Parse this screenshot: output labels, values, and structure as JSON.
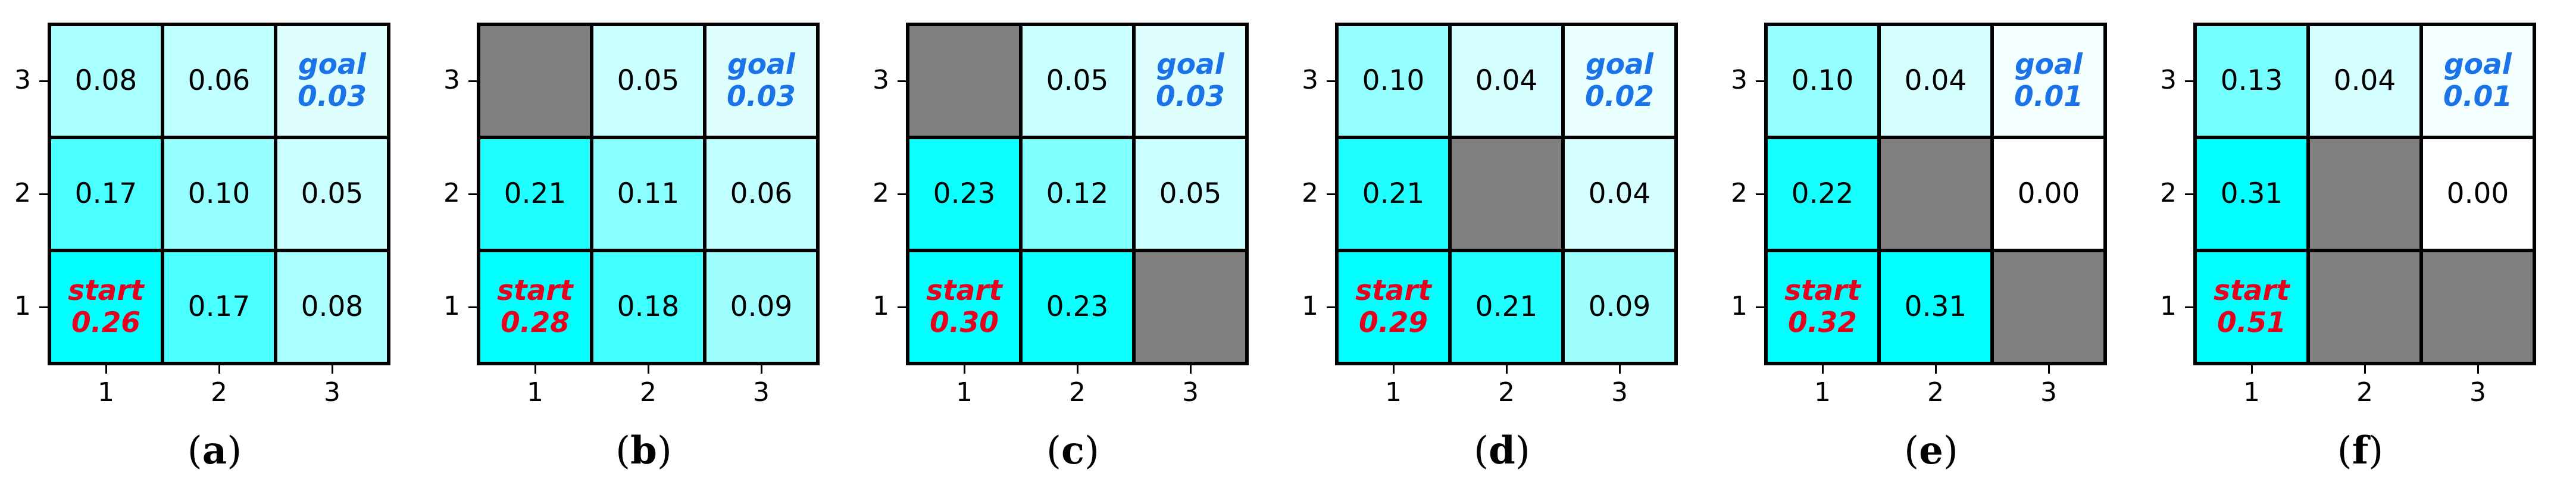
{
  "chart_data": [
    {
      "type": "heatmap",
      "label": "a",
      "x_ticks": [
        "1",
        "2",
        "3"
      ],
      "y_ticks": [
        "1",
        "2",
        "3"
      ],
      "cells": [
        {
          "row": 3,
          "col": 1,
          "value": 0.08,
          "text": "0.08"
        },
        {
          "row": 3,
          "col": 2,
          "value": 0.06,
          "text": "0.06"
        },
        {
          "row": 3,
          "col": 3,
          "value": 0.03,
          "text": "0.03",
          "tag": "goal"
        },
        {
          "row": 2,
          "col": 1,
          "value": 0.17,
          "text": "0.17"
        },
        {
          "row": 2,
          "col": 2,
          "value": 0.1,
          "text": "0.10"
        },
        {
          "row": 2,
          "col": 3,
          "value": 0.05,
          "text": "0.05"
        },
        {
          "row": 1,
          "col": 1,
          "value": 0.26,
          "text": "0.26",
          "tag": "start"
        },
        {
          "row": 1,
          "col": 2,
          "value": 0.17,
          "text": "0.17"
        },
        {
          "row": 1,
          "col": 3,
          "value": 0.08,
          "text": "0.08"
        }
      ]
    },
    {
      "type": "heatmap",
      "label": "b",
      "x_ticks": [
        "1",
        "2",
        "3"
      ],
      "y_ticks": [
        "1",
        "2",
        "3"
      ],
      "cells": [
        {
          "row": 3,
          "col": 1,
          "value": null,
          "blocked": true
        },
        {
          "row": 3,
          "col": 2,
          "value": 0.05,
          "text": "0.05"
        },
        {
          "row": 3,
          "col": 3,
          "value": 0.03,
          "text": "0.03",
          "tag": "goal"
        },
        {
          "row": 2,
          "col": 1,
          "value": 0.21,
          "text": "0.21"
        },
        {
          "row": 2,
          "col": 2,
          "value": 0.11,
          "text": "0.11"
        },
        {
          "row": 2,
          "col": 3,
          "value": 0.06,
          "text": "0.06"
        },
        {
          "row": 1,
          "col": 1,
          "value": 0.28,
          "text": "0.28",
          "tag": "start"
        },
        {
          "row": 1,
          "col": 2,
          "value": 0.18,
          "text": "0.18"
        },
        {
          "row": 1,
          "col": 3,
          "value": 0.09,
          "text": "0.09"
        }
      ]
    },
    {
      "type": "heatmap",
      "label": "c",
      "x_ticks": [
        "1",
        "2",
        "3"
      ],
      "y_ticks": [
        "1",
        "2",
        "3"
      ],
      "cells": [
        {
          "row": 3,
          "col": 1,
          "value": null,
          "blocked": true
        },
        {
          "row": 3,
          "col": 2,
          "value": 0.05,
          "text": "0.05"
        },
        {
          "row": 3,
          "col": 3,
          "value": 0.03,
          "text": "0.03",
          "tag": "goal"
        },
        {
          "row": 2,
          "col": 1,
          "value": 0.23,
          "text": "0.23"
        },
        {
          "row": 2,
          "col": 2,
          "value": 0.12,
          "text": "0.12"
        },
        {
          "row": 2,
          "col": 3,
          "value": 0.05,
          "text": "0.05"
        },
        {
          "row": 1,
          "col": 1,
          "value": 0.3,
          "text": "0.30",
          "tag": "start"
        },
        {
          "row": 1,
          "col": 2,
          "value": 0.23,
          "text": "0.23"
        },
        {
          "row": 1,
          "col": 3,
          "value": null,
          "blocked": true
        }
      ]
    },
    {
      "type": "heatmap",
      "label": "d",
      "x_ticks": [
        "1",
        "2",
        "3"
      ],
      "y_ticks": [
        "1",
        "2",
        "3"
      ],
      "cells": [
        {
          "row": 3,
          "col": 1,
          "value": 0.1,
          "text": "0.10"
        },
        {
          "row": 3,
          "col": 2,
          "value": 0.04,
          "text": "0.04"
        },
        {
          "row": 3,
          "col": 3,
          "value": 0.02,
          "text": "0.02",
          "tag": "goal"
        },
        {
          "row": 2,
          "col": 1,
          "value": 0.21,
          "text": "0.21"
        },
        {
          "row": 2,
          "col": 2,
          "value": null,
          "blocked": true
        },
        {
          "row": 2,
          "col": 3,
          "value": 0.04,
          "text": "0.04"
        },
        {
          "row": 1,
          "col": 1,
          "value": 0.29,
          "text": "0.29",
          "tag": "start"
        },
        {
          "row": 1,
          "col": 2,
          "value": 0.21,
          "text": "0.21"
        },
        {
          "row": 1,
          "col": 3,
          "value": 0.09,
          "text": "0.09"
        }
      ]
    },
    {
      "type": "heatmap",
      "label": "e",
      "x_ticks": [
        "1",
        "2",
        "3"
      ],
      "y_ticks": [
        "1",
        "2",
        "3"
      ],
      "cells": [
        {
          "row": 3,
          "col": 1,
          "value": 0.1,
          "text": "0.10"
        },
        {
          "row": 3,
          "col": 2,
          "value": 0.04,
          "text": "0.04"
        },
        {
          "row": 3,
          "col": 3,
          "value": 0.01,
          "text": "0.01",
          "tag": "goal"
        },
        {
          "row": 2,
          "col": 1,
          "value": 0.22,
          "text": "0.22"
        },
        {
          "row": 2,
          "col": 2,
          "value": null,
          "blocked": true
        },
        {
          "row": 2,
          "col": 3,
          "value": 0.0,
          "text": "0.00"
        },
        {
          "row": 1,
          "col": 1,
          "value": 0.32,
          "text": "0.32",
          "tag": "start"
        },
        {
          "row": 1,
          "col": 2,
          "value": 0.31,
          "text": "0.31"
        },
        {
          "row": 1,
          "col": 3,
          "value": null,
          "blocked": true
        }
      ]
    },
    {
      "type": "heatmap",
      "label": "f",
      "x_ticks": [
        "1",
        "2",
        "3"
      ],
      "y_ticks": [
        "1",
        "2",
        "3"
      ],
      "cells": [
        {
          "row": 3,
          "col": 1,
          "value": 0.13,
          "text": "0.13"
        },
        {
          "row": 3,
          "col": 2,
          "value": 0.04,
          "text": "0.04"
        },
        {
          "row": 3,
          "col": 3,
          "value": 0.01,
          "text": "0.01",
          "tag": "goal"
        },
        {
          "row": 2,
          "col": 1,
          "value": 0.31,
          "text": "0.31"
        },
        {
          "row": 2,
          "col": 2,
          "value": null,
          "blocked": true
        },
        {
          "row": 2,
          "col": 3,
          "value": 0.0,
          "text": "0.00"
        },
        {
          "row": 1,
          "col": 1,
          "value": 0.51,
          "text": "0.51",
          "tag": "start"
        },
        {
          "row": 1,
          "col": 2,
          "value": null,
          "blocked": true
        },
        {
          "row": 1,
          "col": 3,
          "value": null,
          "blocked": true
        }
      ]
    }
  ],
  "colors": {
    "blocked": "#808080",
    "colormap_low": "#ffffff",
    "colormap_high": "#00ffff",
    "start_text": "#e8001c",
    "goal_text": "#1a73e8",
    "grid_line": "#000000"
  },
  "colorscale_max": 0.24,
  "tag_labels": {
    "start": "start",
    "goal": "goal"
  }
}
